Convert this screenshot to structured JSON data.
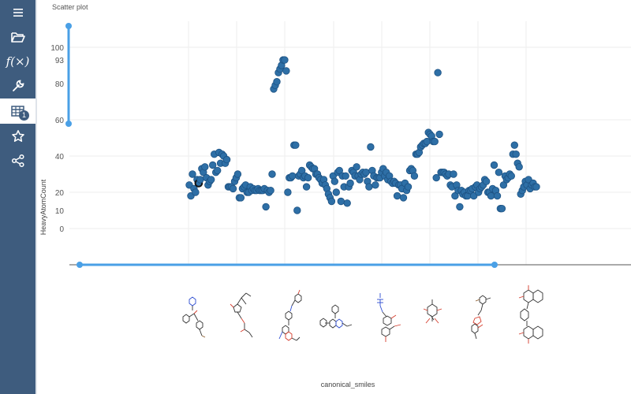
{
  "sidebar": {
    "items": [
      {
        "name": "menu-icon"
      },
      {
        "name": "folder-open-icon"
      },
      {
        "name": "function-icon",
        "label": "f(×)"
      },
      {
        "name": "wrench-icon"
      },
      {
        "name": "table-icon",
        "badge": "1",
        "active": true
      },
      {
        "name": "star-icon"
      },
      {
        "name": "share-icon"
      }
    ]
  },
  "plot": {
    "title": "Scatter plot",
    "x_title": "canonical_smiles",
    "y_title": "HeavyAtomCount",
    "y_ticks": [
      "100",
      "93",
      "80",
      "60",
      "40",
      "20",
      "10",
      "0"
    ],
    "colors": {
      "point": "#2e6fa6",
      "point_stroke": "#1d5283",
      "selected_stroke": "#111111",
      "slider": "#4aa0e6"
    }
  },
  "chart_data": {
    "type": "scatter",
    "title": "Scatter plot",
    "xlabel": "canonical_smiles",
    "ylabel": "HeavyAtomCount",
    "x_type": "categorical (molecule structures)",
    "y_ticks": [
      100,
      93,
      80,
      60,
      40,
      20,
      10,
      0
    ],
    "grid": true,
    "y_values": [
      24,
      18,
      30,
      22,
      20,
      27,
      25,
      27,
      33,
      31,
      34,
      28,
      24,
      26,
      27,
      35,
      41,
      31,
      32,
      42,
      36,
      41,
      40,
      36,
      38,
      23,
      23,
      23,
      22,
      26,
      28,
      30,
      17,
      17,
      22,
      23,
      24,
      20,
      20,
      23,
      21,
      22,
      21,
      21,
      22,
      21,
      21,
      21,
      22,
      12,
      21,
      20,
      21,
      30,
      77,
      79,
      81,
      86,
      88,
      90,
      93,
      93,
      87,
      20,
      28,
      28,
      29,
      46,
      46,
      10,
      29,
      30,
      32,
      28,
      29,
      23,
      28,
      35,
      34,
      33,
      33,
      30,
      30,
      28,
      27,
      25,
      27,
      24,
      22,
      19,
      17,
      15,
      29,
      26,
      20,
      31,
      32,
      15,
      29,
      23,
      29,
      14,
      23,
      25,
      32,
      31,
      29,
      34,
      29,
      27,
      30,
      31,
      30,
      31,
      26,
      23,
      45,
      32,
      29,
      24,
      28,
      28,
      28,
      31,
      33,
      29,
      31,
      27,
      29,
      26,
      25,
      26,
      25,
      18,
      24,
      24,
      22,
      17,
      25,
      21,
      23,
      32,
      33,
      32,
      29,
      41,
      41,
      42,
      45,
      46,
      47,
      47,
      48,
      53,
      52,
      51,
      48,
      48,
      28,
      86,
      52,
      31,
      31,
      31,
      30,
      29,
      30,
      24,
      23,
      30,
      18,
      24,
      21,
      12,
      21,
      19,
      20,
      18,
      18,
      21,
      21,
      22,
      18,
      23,
      24,
      20,
      22,
      23,
      24,
      27,
      26,
      20,
      20,
      18,
      22,
      35,
      21,
      18,
      31,
      11,
      11,
      24,
      29,
      27,
      28,
      30,
      29,
      41,
      46,
      41,
      36,
      34,
      19,
      21,
      23,
      26,
      24,
      27,
      22,
      24,
      25,
      23,
      23
    ],
    "selected_index": 6
  },
  "structures": [
    {
      "name": "structure-1"
    },
    {
      "name": "structure-2"
    },
    {
      "name": "structure-3"
    },
    {
      "name": "structure-4"
    },
    {
      "name": "structure-5"
    },
    {
      "name": "structure-6"
    },
    {
      "name": "structure-7"
    },
    {
      "name": "structure-8"
    }
  ]
}
